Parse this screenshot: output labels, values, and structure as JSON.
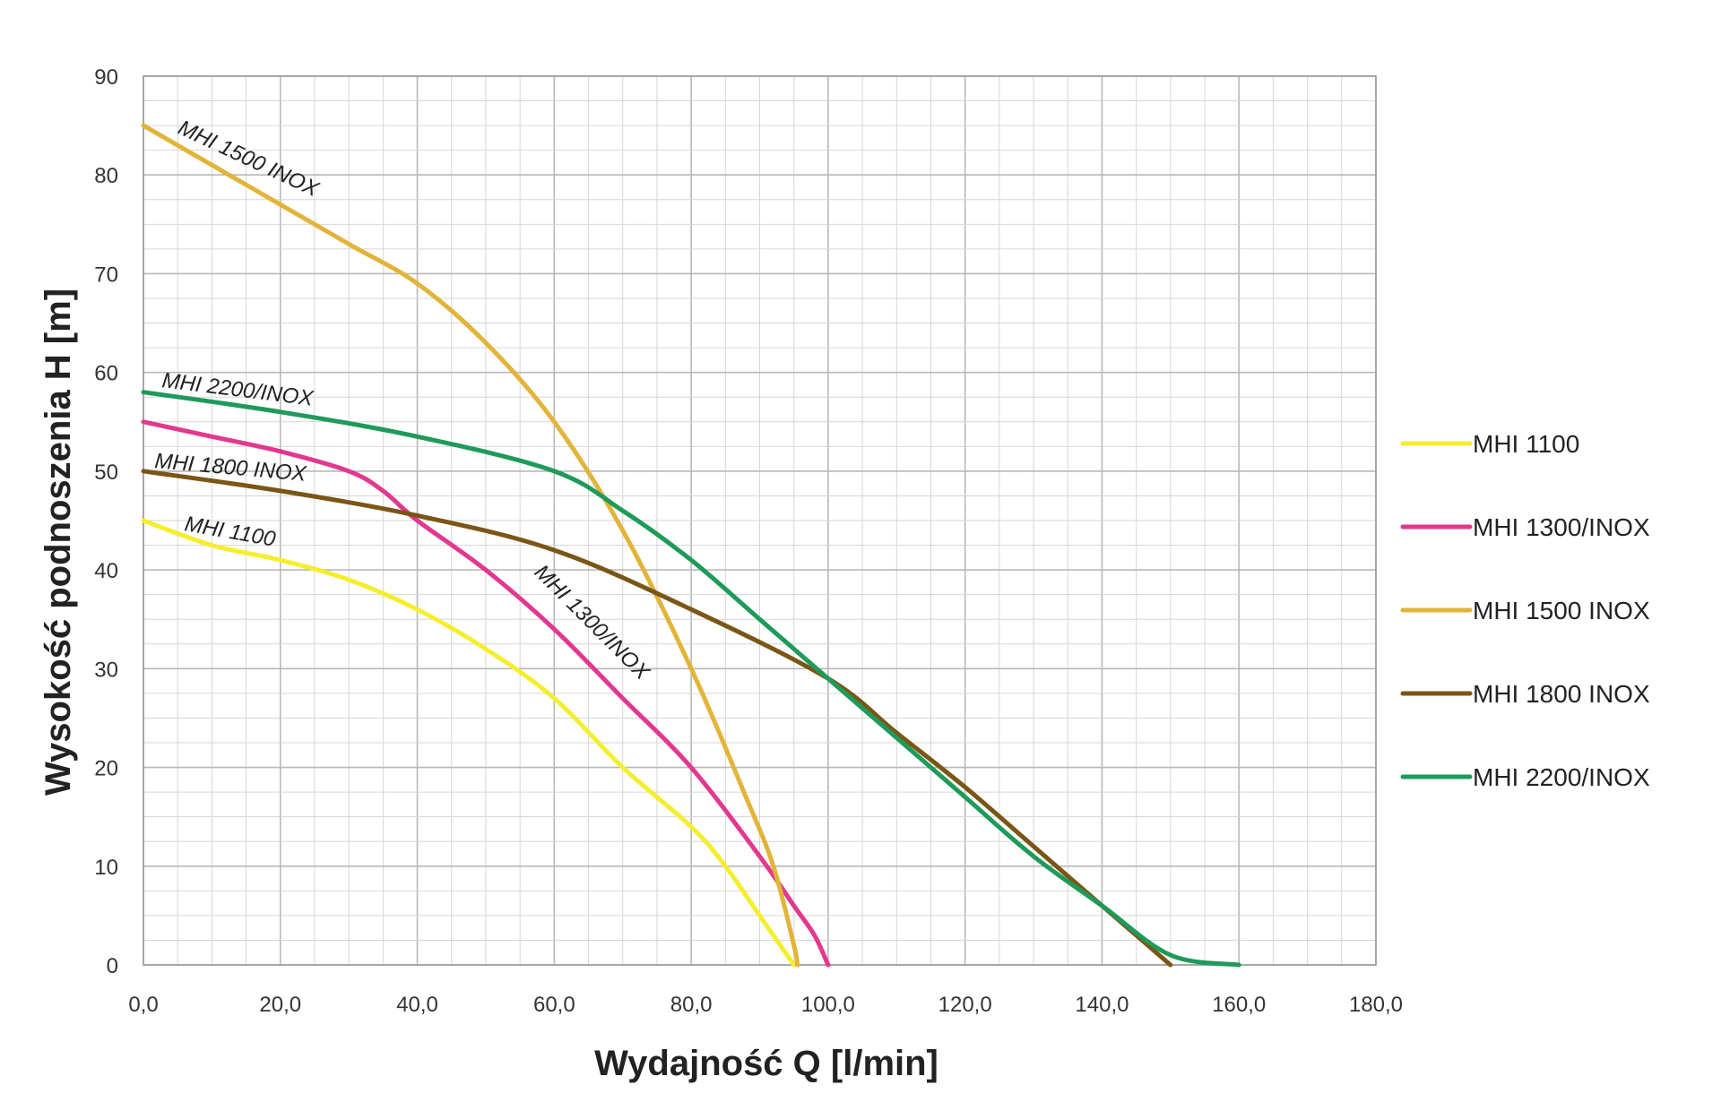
{
  "chart_data": {
    "type": "line",
    "title": "",
    "xlabel": "Wydajność Q [l/min]",
    "ylabel": "Wysokość podnoszenia H [m]",
    "xlim": [
      0,
      180
    ],
    "ylim": [
      0,
      90
    ],
    "x_ticks": [
      "0,0",
      "20,0",
      "40,0",
      "60,0",
      "80,0",
      "100,0",
      "120,0",
      "140,0",
      "160,0",
      "180,0"
    ],
    "y_ticks": [
      "0",
      "10",
      "20",
      "30",
      "40",
      "50",
      "60",
      "70",
      "80",
      "90"
    ],
    "grid": true,
    "legend_position": "right",
    "series": [
      {
        "name": "MHI 1100",
        "color": "#f5ee2e",
        "label": "MHI 1100",
        "points": [
          [
            0,
            45
          ],
          [
            10,
            42.5
          ],
          [
            20,
            41
          ],
          [
            30,
            39
          ],
          [
            40,
            36
          ],
          [
            50,
            32
          ],
          [
            60,
            27
          ],
          [
            70,
            20
          ],
          [
            80,
            14
          ],
          [
            85,
            10
          ],
          [
            90,
            5
          ],
          [
            95,
            0
          ]
        ]
      },
      {
        "name": "MHI 1300/INOX",
        "color": "#e2388f",
        "label": "MHI 1300/INOX",
        "points": [
          [
            0,
            55
          ],
          [
            10,
            53.5
          ],
          [
            20,
            52
          ],
          [
            30,
            50
          ],
          [
            35,
            48
          ],
          [
            40,
            45
          ],
          [
            50,
            40
          ],
          [
            60,
            34
          ],
          [
            70,
            27
          ],
          [
            80,
            20
          ],
          [
            90,
            11
          ],
          [
            95,
            6
          ],
          [
            98,
            3
          ],
          [
            100,
            0
          ]
        ]
      },
      {
        "name": "MHI 1500 INOX",
        "color": "#e2b43a",
        "label": "MHI 1500 INOX",
        "points": [
          [
            0,
            85
          ],
          [
            10,
            81
          ],
          [
            20,
            77
          ],
          [
            30,
            73
          ],
          [
            40,
            69
          ],
          [
            50,
            63
          ],
          [
            60,
            55
          ],
          [
            70,
            44
          ],
          [
            80,
            30
          ],
          [
            88,
            17
          ],
          [
            92,
            10
          ],
          [
            95,
            2
          ],
          [
            95.5,
            0
          ]
        ]
      },
      {
        "name": "MHI 1800 INOX",
        "color": "#7a5616",
        "label": "MHI 1800 INOX",
        "points": [
          [
            0,
            50
          ],
          [
            20,
            48
          ],
          [
            40,
            45.5
          ],
          [
            60,
            42
          ],
          [
            80,
            36
          ],
          [
            100,
            29
          ],
          [
            110,
            23.5
          ],
          [
            120,
            18
          ],
          [
            130,
            12
          ],
          [
            140,
            6
          ],
          [
            150,
            0
          ]
        ]
      },
      {
        "name": "MHI 2200/INOX",
        "color": "#1e9a5a",
        "label": "MHI 2200/INOX",
        "points": [
          [
            0,
            58
          ],
          [
            20,
            56
          ],
          [
            40,
            53.5
          ],
          [
            60,
            50
          ],
          [
            70,
            46
          ],
          [
            80,
            41
          ],
          [
            90,
            35
          ],
          [
            100,
            29
          ],
          [
            110,
            23
          ],
          [
            120,
            17
          ],
          [
            130,
            11
          ],
          [
            140,
            6
          ],
          [
            150,
            1
          ],
          [
            160,
            0
          ]
        ]
      }
    ]
  }
}
